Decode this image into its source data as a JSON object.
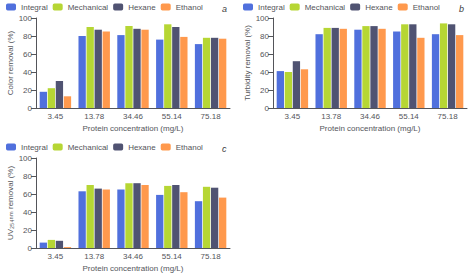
{
  "chart_data": [
    {
      "type": "bar",
      "categories": [
        "3.45",
        "13.78",
        "34.46",
        "55.14",
        "75.18"
      ],
      "series": [
        {
          "name": "Integral",
          "values": [
            18,
            80,
            81,
            76,
            71
          ]
        },
        {
          "name": "Mechanical",
          "values": [
            22,
            90,
            91,
            93,
            78
          ]
        },
        {
          "name": "Hexane",
          "values": [
            30,
            87,
            88,
            90,
            78
          ]
        },
        {
          "name": "Ethanol",
          "values": [
            13,
            85,
            87,
            79,
            77
          ]
        }
      ],
      "xlabel": "Protein concentration (mg/L)",
      "ylabel": "Color removal (%)",
      "ylim": [
        0,
        100
      ],
      "yticks": [
        0,
        20,
        40,
        60,
        80,
        100
      ],
      "annotations": [
        "a"
      ],
      "grid": false,
      "legend": "upper left"
    },
    {
      "type": "bar",
      "categories": [
        "3.45",
        "13.78",
        "34.46",
        "55.14",
        "75.18"
      ],
      "series": [
        {
          "name": "Integral",
          "values": [
            41,
            82,
            87,
            85,
            82
          ]
        },
        {
          "name": "Mechanical",
          "values": [
            40,
            89,
            91,
            93,
            94
          ]
        },
        {
          "name": "Hexane",
          "values": [
            52,
            89,
            91,
            93,
            93
          ]
        },
        {
          "name": "Ethanol",
          "values": [
            43,
            88,
            88,
            78,
            81
          ]
        }
      ],
      "xlabel": "Protein concentration (mg/L)",
      "ylabel": "Turbidity removal (%)",
      "ylim": [
        0,
        100
      ],
      "yticks": [
        0,
        20,
        40,
        60,
        80,
        100
      ],
      "annotations": [
        "b"
      ],
      "grid": false,
      "legend": "upper left"
    },
    {
      "type": "bar",
      "categories": [
        "3.45",
        "13.78",
        "34.46",
        "55.14",
        "75.18"
      ],
      "series": [
        {
          "name": "Integral",
          "values": [
            6,
            63,
            65,
            59,
            52
          ]
        },
        {
          "name": "Mechanical",
          "values": [
            9,
            70,
            72,
            69,
            68
          ]
        },
        {
          "name": "Hexane",
          "values": [
            8,
            66,
            72,
            70,
            67
          ]
        },
        {
          "name": "Ethanol",
          "values": [
            1,
            65,
            70,
            62,
            56
          ]
        }
      ],
      "xlabel": "Protein concentration (mg/L)",
      "ylabel": "UV₂₅₄ₙₘ removal (%)",
      "ylim": [
        0,
        100
      ],
      "yticks": [
        0,
        20,
        40,
        60,
        80,
        100
      ],
      "annotations": [
        "c"
      ],
      "grid": false,
      "legend": "upper left"
    }
  ]
}
